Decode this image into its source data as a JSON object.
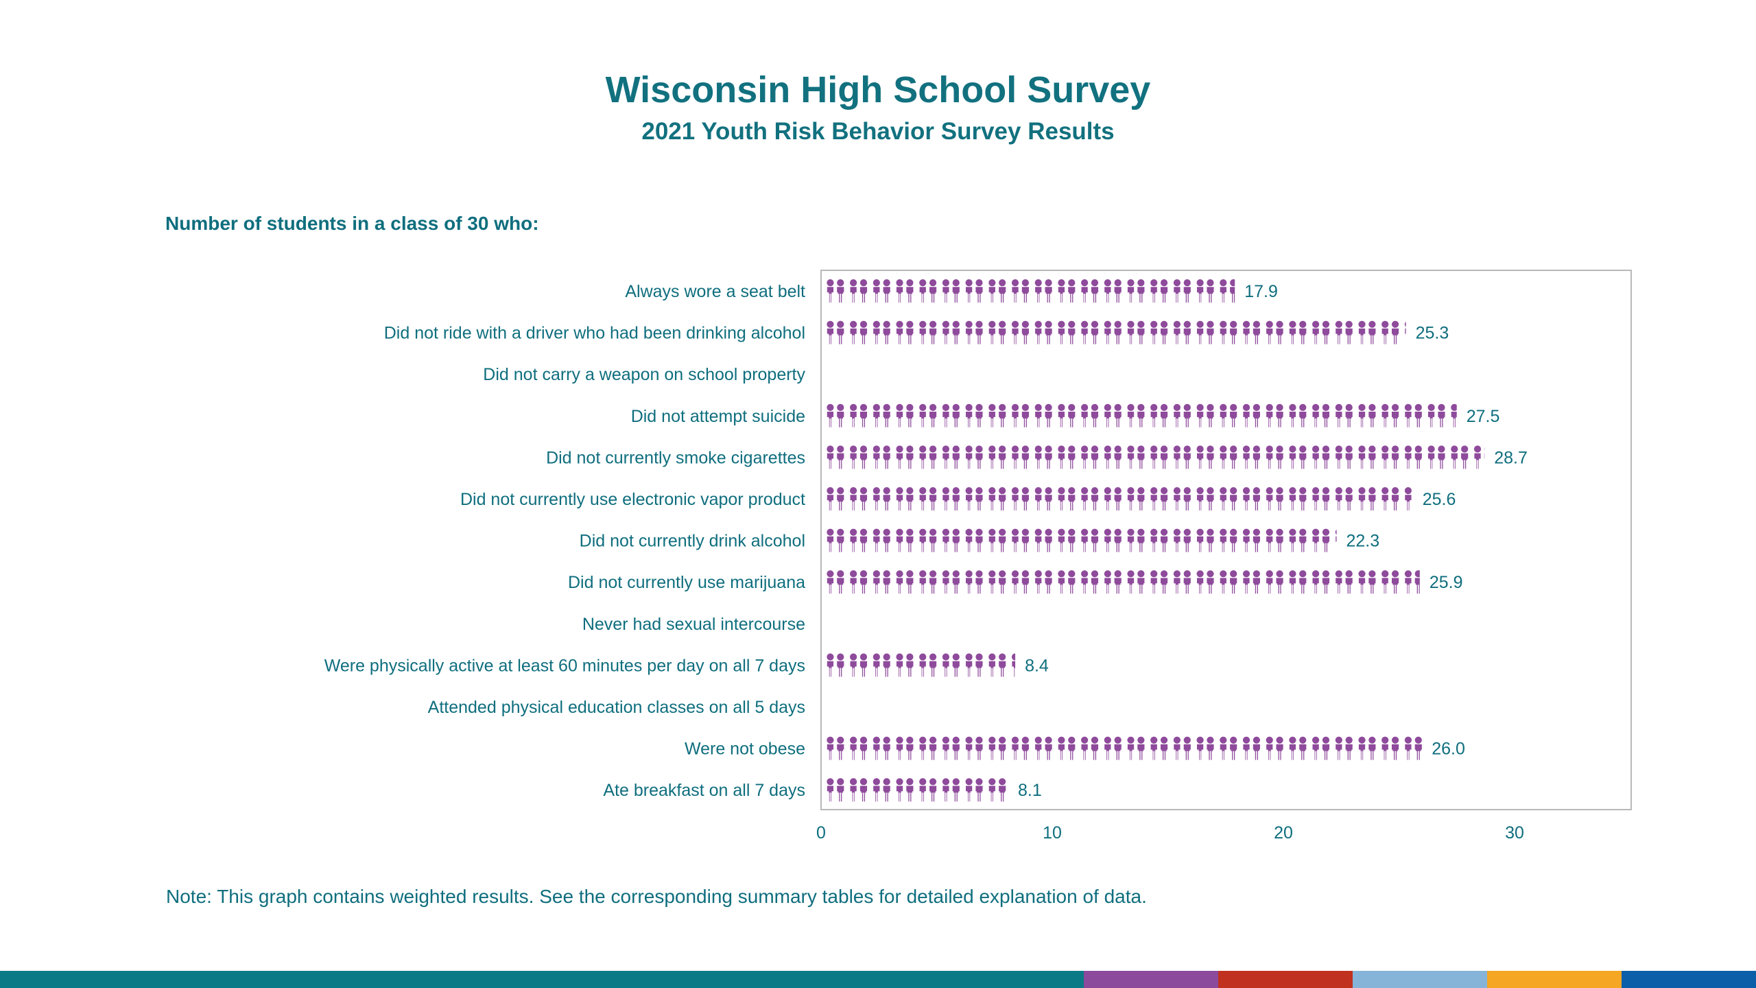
{
  "header": {
    "title": "Wisconsin High School Survey",
    "subtitle": "2021 Youth Risk Behavior Survey Results"
  },
  "chart_header": "Number of students in a class of 30 who:",
  "footnote": "Note: This graph contains weighted results. See the corresponding summary tables for detailed explanation of data.",
  "colors": {
    "icon": "#8e4a9b",
    "text": "#0f6e7e",
    "frame": "#b8b8b8"
  },
  "footer_colors": [
    "#0a7b86",
    "#8b4a9c",
    "#c0311f",
    "#86b4d8",
    "#f5a623",
    "#0b5ea8"
  ],
  "chart_data": {
    "type": "bar",
    "style": "pictograph",
    "icon": "person-pair-icon",
    "categories": [
      "Always wore a seat belt",
      "Did not ride with a driver who had been drinking alcohol",
      "Did not carry a weapon on school property",
      "Did not attempt suicide",
      "Did not currently smoke cigarettes",
      "Did not currently use electronic vapor product",
      "Did not currently drink alcohol",
      "Did not currently use marijuana",
      "Never had sexual intercourse",
      "Were physically active at least 60 minutes per day on all 7 days",
      "Attended physical education classes on all 5 days",
      "Were not obese",
      "Ate breakfast on all 7 days"
    ],
    "values": [
      17.9,
      25.3,
      null,
      27.5,
      28.7,
      25.6,
      22.3,
      25.9,
      null,
      8.4,
      null,
      26.0,
      8.1
    ],
    "value_labels": [
      "17.9",
      "25.3",
      "",
      "27.5",
      "28.7",
      "25.6",
      "22.3",
      "25.9",
      "",
      "8.4",
      "",
      "26.0",
      "8.1"
    ],
    "xlim": [
      0,
      35
    ],
    "xticks": [
      0,
      10,
      20,
      30
    ],
    "xtick_labels": [
      "0",
      "10",
      "20",
      "30"
    ],
    "grid": false,
    "legend": "none"
  }
}
